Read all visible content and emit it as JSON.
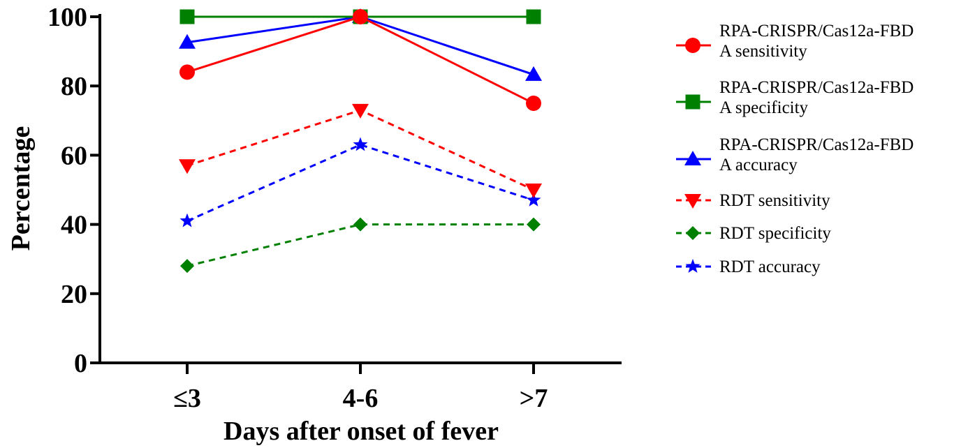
{
  "chart_data": {
    "type": "line",
    "xlabel": "Days after onset of fever",
    "ylabel": "Percentage",
    "categories": [
      "≤3",
      "4-6",
      ">7"
    ],
    "ylim": [
      0,
      100
    ],
    "yticks": [
      0,
      20,
      40,
      60,
      80,
      100
    ],
    "grid": false,
    "legend_position": "right",
    "series": [
      {
        "name": "RPA-CRISPR/Cas12a-FBDA sensitivity",
        "legend_lines": [
          "RPA-CRISPR/Cas12a-FBD",
          "A sensitivity"
        ],
        "values": [
          84,
          100,
          75
        ],
        "color": "#ff0000",
        "marker": "circle",
        "dash": "solid"
      },
      {
        "name": "RPA-CRISPR/Cas12a-FBDA specificity",
        "legend_lines": [
          "RPA-CRISPR/Cas12a-FBD",
          "A specificity"
        ],
        "values": [
          100,
          100,
          100
        ],
        "color": "#008000",
        "marker": "square",
        "dash": "solid"
      },
      {
        "name": "RPA-CRISPR/Cas12a-FBDA accuracy",
        "legend_lines": [
          "RPA-CRISPR/Cas12a-FBD",
          "A accuracy"
        ],
        "values": [
          92.6,
          100,
          83.3
        ],
        "color": "#0000ff",
        "marker": "triangle-up",
        "dash": "solid"
      },
      {
        "name": "RDT sensitivity",
        "legend_lines": [
          "RDT sensitivity"
        ],
        "values": [
          57,
          73,
          50
        ],
        "color": "#ff0000",
        "marker": "triangle-down",
        "dash": "dashed"
      },
      {
        "name": "RDT specificity",
        "legend_lines": [
          "RDT specificity"
        ],
        "values": [
          28,
          40,
          40
        ],
        "color": "#008000",
        "marker": "diamond",
        "dash": "dashed"
      },
      {
        "name": "RDT accuracy",
        "legend_lines": [
          "RDT accuracy"
        ],
        "values": [
          41,
          63,
          47
        ],
        "color": "#0000ff",
        "marker": "star",
        "dash": "dashed"
      }
    ]
  }
}
